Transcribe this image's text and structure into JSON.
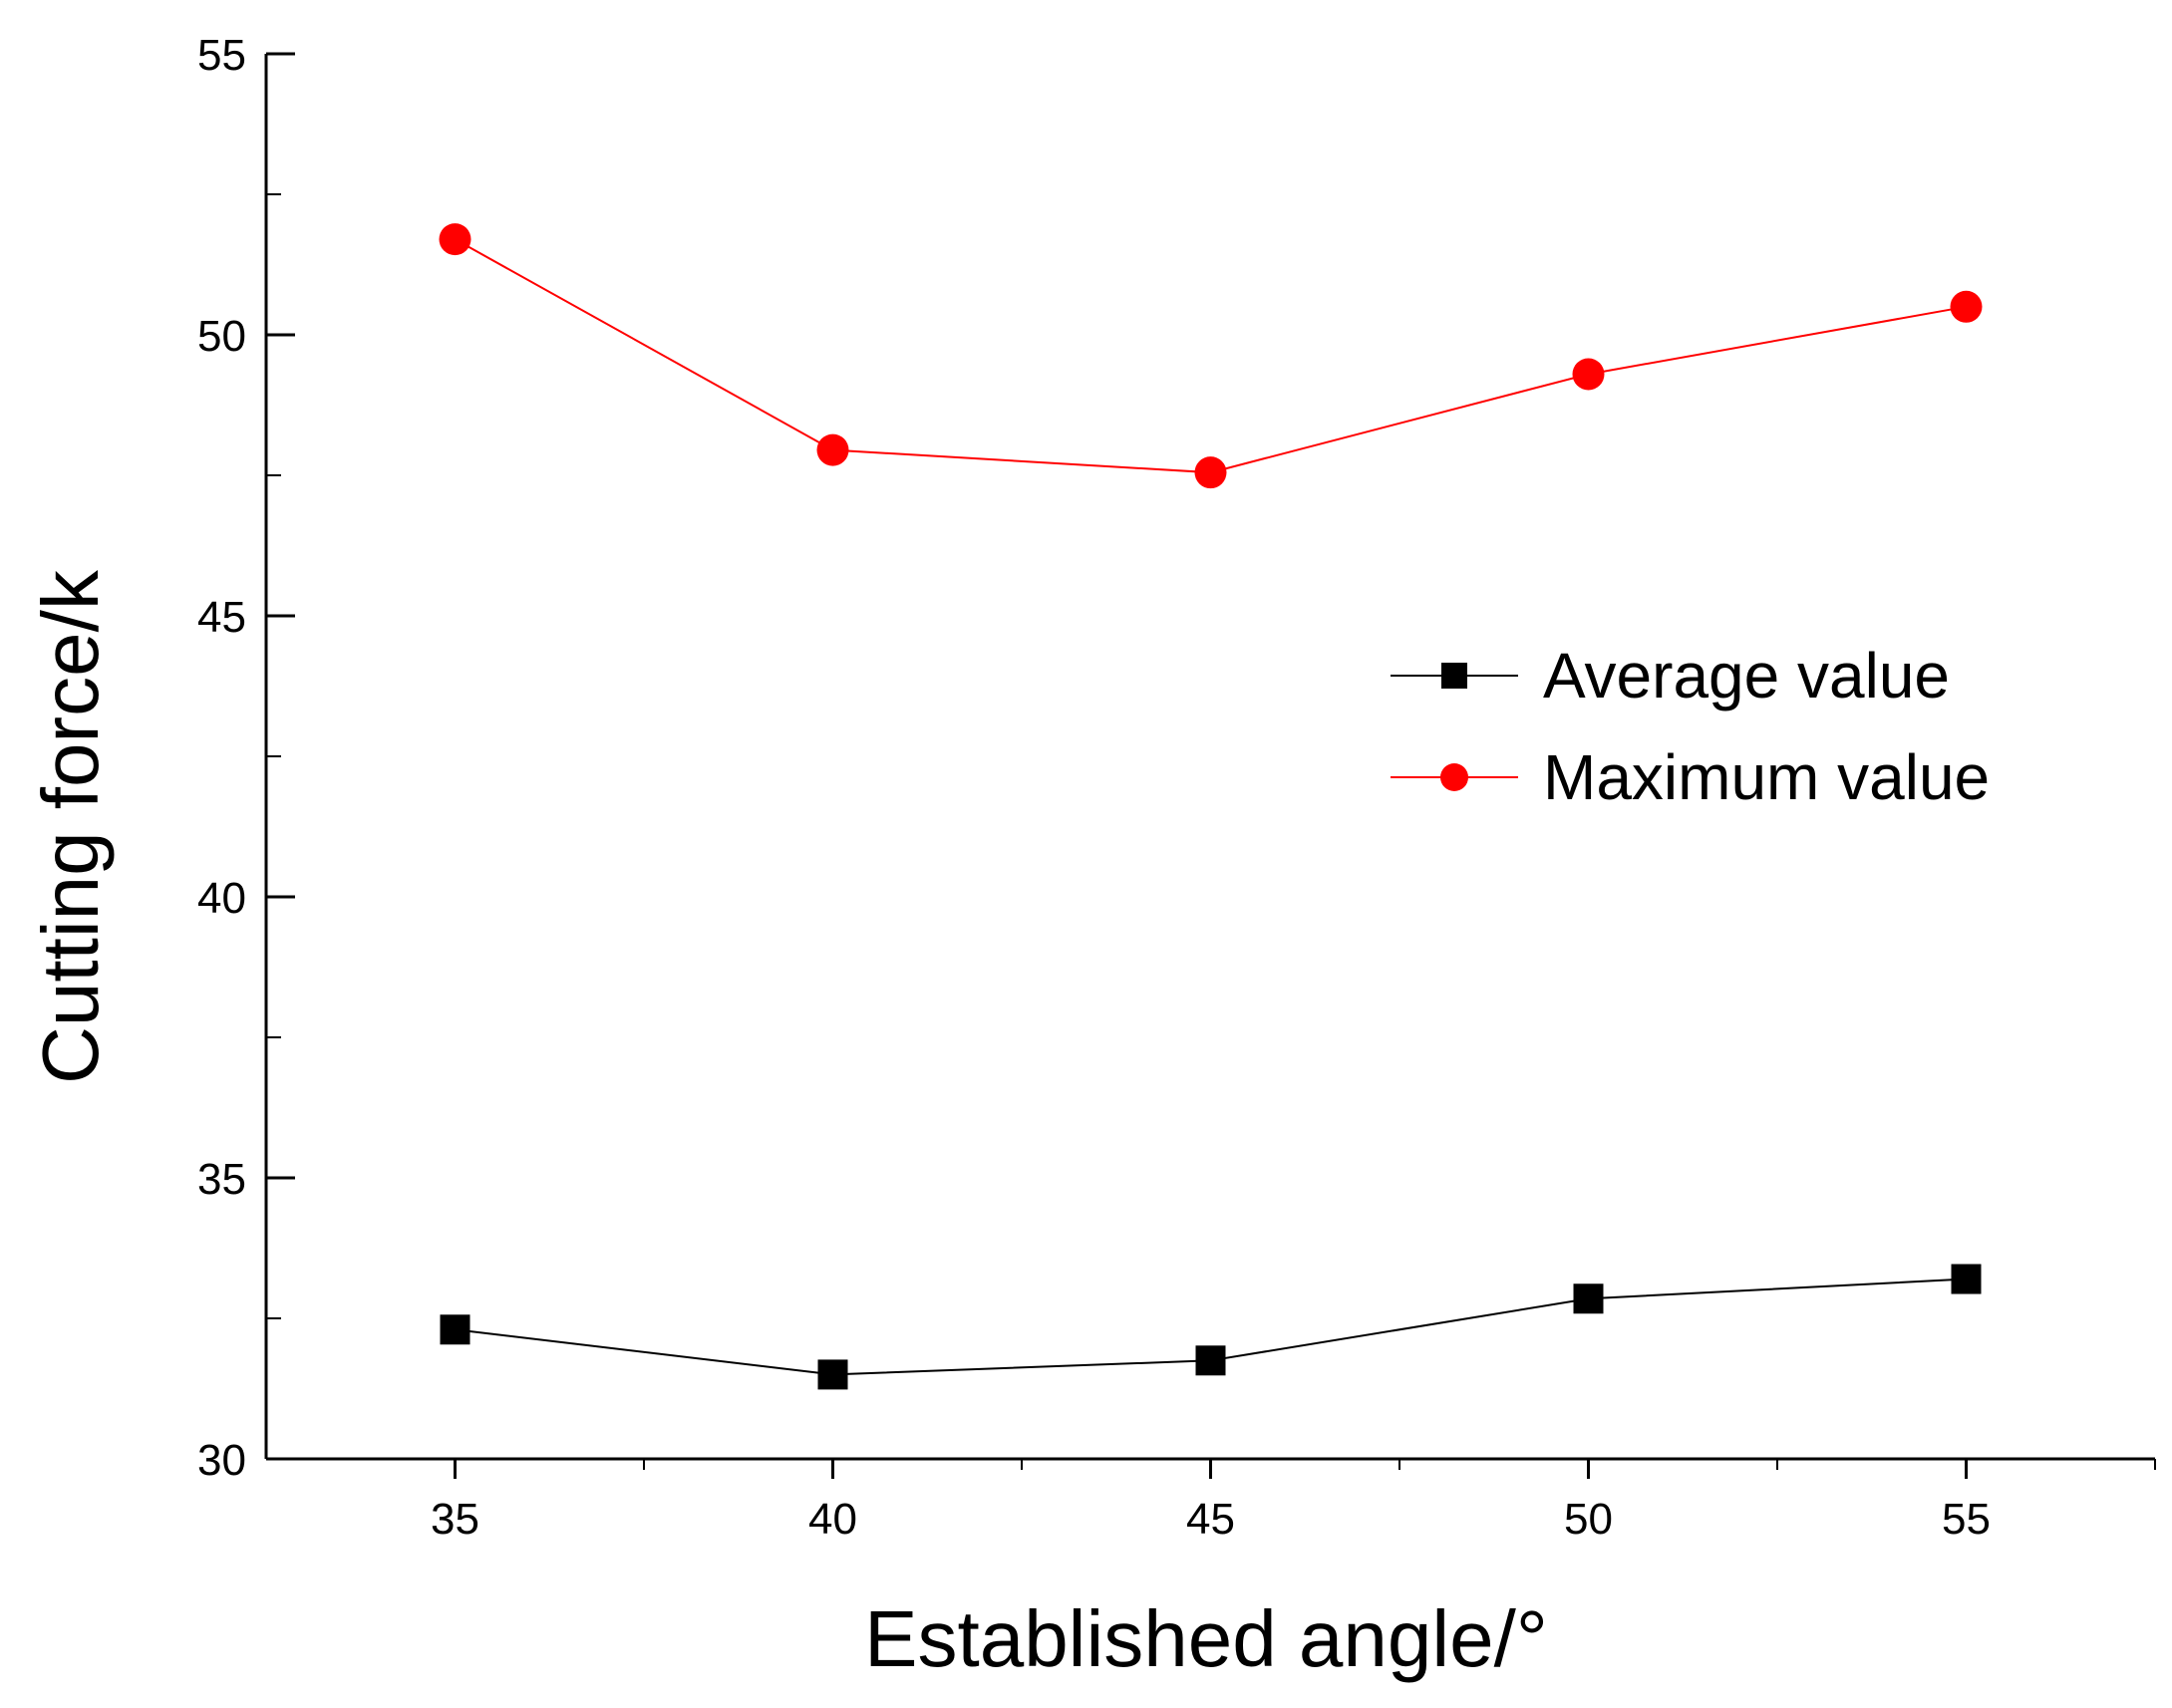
{
  "chart_data": {
    "type": "line",
    "title": "",
    "xlabel": "Established angle/°",
    "ylabel": "Cutting force/k",
    "x": [
      35,
      40,
      45,
      50,
      55
    ],
    "xlim": [
      32.5,
      57.5
    ],
    "ylim": [
      30,
      55
    ],
    "xticks": [
      35,
      40,
      45,
      50,
      55
    ],
    "yticks": [
      30,
      35,
      40,
      45,
      50,
      55
    ],
    "x_minor_ticks": [
      37.5,
      42.5,
      47.5,
      52.5,
      57.5
    ],
    "y_minor_ticks": [
      32.5,
      37.5,
      42.5,
      47.5,
      52.5
    ],
    "grid": false,
    "legend_position": "right",
    "series": [
      {
        "name": "Average value",
        "color": "#000000",
        "marker": "square",
        "values": [
          32.3,
          31.5,
          31.75,
          32.85,
          33.2
        ]
      },
      {
        "name": "Maximum value",
        "color": "#ff0000",
        "marker": "circle",
        "values": [
          51.7,
          47.95,
          47.55,
          49.3,
          50.5
        ]
      }
    ]
  }
}
